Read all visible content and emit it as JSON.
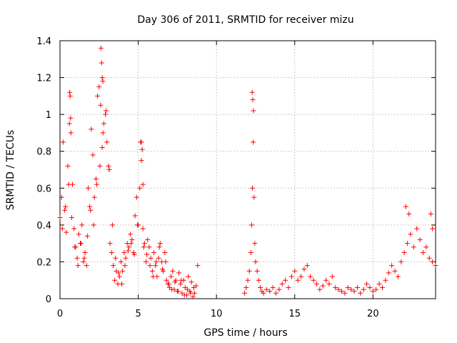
{
  "chart_data": {
    "type": "scatter",
    "title": "Day 306 of 2011, SRMTID for receiver mizu",
    "xlabel": "GPS time / hours",
    "ylabel": "SRMTID / TECUs",
    "xlim": [
      0,
      24
    ],
    "ylim": [
      0,
      1.4
    ],
    "xticks": [
      0,
      5,
      10,
      15,
      20
    ],
    "xtick_labels": [
      "0",
      "5",
      "10",
      "15",
      "20"
    ],
    "yticks": [
      0,
      0.2,
      0.4,
      0.6,
      0.8,
      1.0,
      1.2,
      1.4
    ],
    "ytick_labels": [
      "0",
      "0.2",
      "0.4",
      "0.6",
      "0.8",
      "1",
      "1.2",
      "1.4"
    ],
    "grid": true,
    "marker": "+",
    "color": "#ff0000",
    "series": [
      {
        "name": "SRMTID",
        "x": [
          0.0,
          0.1,
          0.2,
          0.3,
          0.4,
          0.5,
          0.6,
          0.7,
          0.8,
          0.9,
          1.0,
          1.1,
          1.2,
          1.3,
          1.4,
          1.5,
          1.6,
          1.7,
          1.8,
          1.9,
          2.0,
          2.1,
          2.2,
          2.3,
          2.4,
          2.5,
          2.6,
          2.7,
          2.8,
          2.9,
          3.0,
          3.1,
          3.2,
          3.3,
          3.4,
          3.5,
          3.6,
          3.7,
          3.8,
          3.9,
          4.0,
          4.1,
          4.2,
          4.3,
          4.4,
          4.5,
          4.6,
          4.7,
          4.8,
          4.9,
          5.0,
          5.1,
          5.2,
          5.3,
          5.4,
          5.5,
          5.6,
          5.7,
          5.8,
          5.9,
          6.0,
          6.1,
          6.2,
          6.3,
          6.4,
          6.5,
          6.6,
          6.7,
          6.8,
          6.9,
          7.0,
          7.1,
          7.2,
          7.3,
          7.4,
          7.5,
          7.6,
          7.7,
          7.8,
          7.9,
          8.0,
          8.1,
          8.2,
          8.3,
          8.4,
          8.5,
          8.6,
          8.7,
          8.8,
          11.8,
          11.9,
          12.0,
          12.1,
          12.2,
          12.25,
          12.3,
          12.35,
          12.4,
          12.45,
          12.5,
          12.6,
          12.7,
          12.8,
          12.9,
          13.0,
          13.2,
          13.4,
          13.6,
          13.8,
          14.0,
          14.2,
          14.4,
          14.6,
          14.8,
          15.0,
          15.2,
          15.4,
          15.6,
          15.8,
          16.0,
          16.2,
          16.4,
          16.6,
          16.8,
          17.0,
          17.2,
          17.4,
          17.6,
          17.8,
          18.0,
          18.2,
          18.4,
          18.6,
          18.8,
          19.0,
          19.2,
          19.4,
          19.6,
          19.8,
          20.0,
          20.2,
          20.4,
          20.6,
          20.8,
          21.0,
          21.2,
          21.4,
          21.6,
          21.8,
          22.0,
          22.2,
          22.4,
          22.6,
          22.8,
          23.0,
          23.2,
          23.4,
          23.6,
          23.8,
          24.0,
          0.15,
          0.35,
          0.55,
          0.75,
          0.95,
          1.15,
          1.35,
          1.55,
          1.75,
          1.95,
          2.15,
          2.35,
          2.55,
          2.75,
          2.95,
          3.15,
          3.35,
          3.55,
          3.75,
          3.95,
          4.15,
          4.35,
          4.55,
          4.75,
          4.95,
          5.15,
          5.35,
          5.55,
          5.75,
          5.95,
          6.15,
          6.35,
          6.55,
          6.75,
          6.95,
          7.15,
          7.35,
          7.55,
          7.75,
          7.95,
          8.15,
          8.35,
          8.55,
          0.62,
          0.65,
          0.68,
          2.62,
          2.66,
          2.7,
          2.74,
          5.2,
          5.25,
          5.3,
          12.28,
          12.32,
          12.36,
          22.1,
          22.3,
          23.7,
          23.8
        ],
        "y": [
          0.44,
          0.55,
          0.85,
          0.48,
          0.36,
          0.72,
          0.95,
          0.9,
          0.62,
          0.38,
          0.28,
          0.22,
          0.35,
          0.3,
          0.4,
          0.2,
          0.25,
          0.18,
          0.6,
          0.5,
          0.92,
          0.78,
          0.55,
          0.65,
          1.1,
          1.15,
          1.05,
          0.82,
          0.95,
          1.0,
          0.85,
          0.72,
          0.3,
          0.25,
          0.18,
          0.1,
          0.15,
          0.08,
          0.12,
          0.2,
          0.15,
          0.25,
          0.22,
          0.3,
          0.28,
          0.35,
          0.32,
          0.25,
          0.45,
          0.55,
          0.4,
          0.6,
          0.75,
          0.38,
          0.3,
          0.2,
          0.32,
          0.28,
          0.22,
          0.15,
          0.25,
          0.18,
          0.12,
          0.22,
          0.3,
          0.2,
          0.15,
          0.25,
          0.1,
          0.08,
          0.06,
          0.12,
          0.15,
          0.05,
          0.1,
          0.04,
          0.14,
          0.08,
          0.03,
          0.1,
          0.06,
          0.02,
          0.12,
          0.04,
          0.09,
          0.01,
          0.03,
          0.07,
          0.18,
          0.03,
          0.06,
          0.1,
          0.15,
          0.25,
          0.4,
          0.6,
          0.85,
          0.55,
          0.3,
          0.2,
          0.15,
          0.1,
          0.06,
          0.04,
          0.03,
          0.05,
          0.04,
          0.06,
          0.03,
          0.05,
          0.08,
          0.1,
          0.06,
          0.12,
          0.15,
          0.1,
          0.12,
          0.16,
          0.18,
          0.12,
          0.1,
          0.08,
          0.05,
          0.07,
          0.1,
          0.08,
          0.12,
          0.06,
          0.05,
          0.04,
          0.03,
          0.06,
          0.05,
          0.04,
          0.06,
          0.03,
          0.05,
          0.08,
          0.06,
          0.04,
          0.05,
          0.08,
          0.06,
          0.1,
          0.14,
          0.18,
          0.15,
          0.12,
          0.2,
          0.25,
          0.3,
          0.35,
          0.28,
          0.38,
          0.32,
          0.25,
          0.28,
          0.22,
          0.2,
          0.18,
          0.38,
          0.5,
          0.62,
          0.44,
          0.28,
          0.18,
          0.3,
          0.22,
          0.34,
          0.48,
          0.4,
          0.62,
          0.72,
          0.9,
          1.02,
          0.7,
          0.4,
          0.22,
          0.14,
          0.08,
          0.18,
          0.26,
          0.3,
          0.24,
          0.4,
          0.85,
          0.28,
          0.24,
          0.18,
          0.12,
          0.2,
          0.28,
          0.16,
          0.2,
          0.08,
          0.05,
          0.09,
          0.04,
          0.1,
          0.02,
          0.05,
          0.03,
          0.06,
          1.12,
          1.1,
          0.98,
          1.36,
          1.28,
          1.2,
          1.18,
          0.85,
          0.81,
          0.62,
          1.12,
          1.08,
          1.02,
          0.5,
          0.46,
          0.46,
          0.38
        ]
      }
    ]
  }
}
